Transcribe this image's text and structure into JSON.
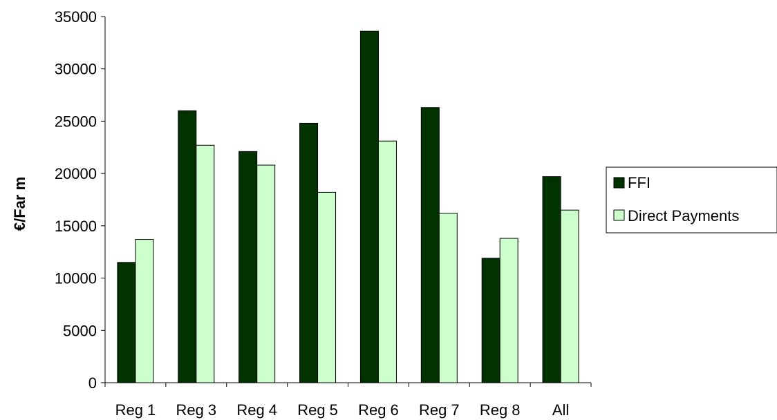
{
  "chart_data": {
    "type": "bar",
    "title": "",
    "xlabel": "",
    "ylabel": "€/Far m",
    "categories": [
      "Reg 1",
      "Reg 3",
      "Reg 4",
      "Reg 5",
      "Reg 6",
      "Reg 7",
      "Reg 8",
      "All"
    ],
    "series": [
      {
        "name": "FFI",
        "color": "#003300",
        "values": [
          11500,
          26000,
          22100,
          24800,
          33600,
          26300,
          11900,
          19700
        ]
      },
      {
        "name": "Direct Payments",
        "color": "#ccffcc",
        "values": [
          13700,
          22700,
          20800,
          18200,
          23100,
          16200,
          13800,
          16500
        ]
      }
    ],
    "ylim": [
      0,
      35000
    ],
    "yticks": [
      0,
      5000,
      10000,
      15000,
      20000,
      25000,
      30000,
      35000
    ],
    "grid": false,
    "legend_position": "right"
  }
}
